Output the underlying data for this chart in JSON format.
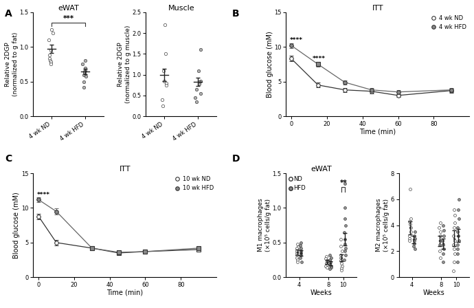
{
  "panel_A_eWAT": {
    "title": "eWAT",
    "ylabel": "Relative 2DGP\n(normalized to g fat)",
    "groups": [
      "4 wk ND",
      "4 wk HFD"
    ],
    "means": [
      0.97,
      0.65
    ],
    "sems": [
      0.06,
      0.04
    ],
    "nd_points": [
      1.25,
      1.2,
      1.1,
      0.95,
      0.88,
      0.83,
      0.8,
      0.78,
      0.75
    ],
    "hfd_points": [
      0.8,
      0.75,
      0.7,
      0.67,
      0.65,
      0.63,
      0.6,
      0.58,
      0.5,
      0.42
    ],
    "sig_text": "***",
    "ylim": [
      0,
      1.5
    ],
    "yticks": [
      0.0,
      0.5,
      1.0,
      1.5
    ]
  },
  "panel_A_Muscle": {
    "title": "Muscle",
    "ylabel": "Relative 2DGP\n(normalized to g muscle)",
    "groups": [
      "4 wk ND",
      "4 wk HFD"
    ],
    "means": [
      1.0,
      0.82
    ],
    "sems": [
      0.15,
      0.1
    ],
    "nd_points": [
      2.2,
      1.5,
      1.1,
      0.85,
      0.8,
      0.75,
      0.4,
      0.25
    ],
    "hfd_points": [
      1.6,
      1.1,
      0.85,
      0.82,
      0.78,
      0.65,
      0.55,
      0.45,
      0.35
    ],
    "ylim": [
      0,
      2.5
    ],
    "yticks": [
      0.0,
      0.5,
      1.0,
      1.5,
      2.0,
      2.5
    ]
  },
  "panel_B": {
    "title": "ITT",
    "xlabel": "Time (min)",
    "ylabel": "Blood glucose (mM)",
    "time_points": [
      0,
      15,
      30,
      45,
      60,
      90
    ],
    "nd_mean": [
      8.3,
      4.5,
      3.8,
      3.6,
      3.0,
      3.7
    ],
    "nd_sem": [
      0.4,
      0.35,
      0.3,
      0.3,
      0.2,
      0.3
    ],
    "hfd_mean": [
      10.2,
      7.5,
      4.9,
      3.8,
      3.5,
      3.8
    ],
    "hfd_sem": [
      0.35,
      0.35,
      0.3,
      0.3,
      0.3,
      0.3
    ],
    "legend": [
      "4 wk ND",
      "4 wk HFD"
    ],
    "sig_t0": true,
    "sig_t15": true,
    "ylim": [
      0,
      15
    ],
    "yticks": [
      0,
      5,
      10,
      15
    ],
    "xticks": [
      0,
      20,
      40,
      60,
      80
    ],
    "xlim": [
      -3,
      100
    ]
  },
  "panel_C": {
    "title": "ITT",
    "xlabel": "Time (min)",
    "ylabel": "Blood glucose (mM)",
    "time_points": [
      0,
      10,
      30,
      45,
      60,
      90
    ],
    "nd_mean": [
      8.8,
      5.0,
      4.2,
      3.5,
      3.7,
      4.0
    ],
    "nd_sem": [
      0.4,
      0.4,
      0.3,
      0.3,
      0.3,
      0.3
    ],
    "hfd_mean": [
      11.2,
      9.5,
      4.2,
      3.6,
      3.7,
      4.2
    ],
    "hfd_sem": [
      0.35,
      0.4,
      0.3,
      0.3,
      0.3,
      0.3
    ],
    "legend": [
      "10 wk ND",
      "10 wk HFD"
    ],
    "sig_t0": true,
    "square_from_idx": 2,
    "ylim": [
      0,
      15
    ],
    "yticks": [
      0,
      5,
      10,
      15
    ],
    "xticks": [
      0,
      20,
      40,
      60,
      80
    ],
    "xlim": [
      -3,
      100
    ]
  },
  "panel_D_M1": {
    "title": "eWAT",
    "xlabel": "Weeks",
    "ylabel": "M1 macrophages\n(×10⁵ cells/g fat)",
    "weeks": [
      4,
      8,
      10
    ],
    "nd_points_4wk": [
      0.48,
      0.44,
      0.42,
      0.38,
      0.35,
      0.32,
      0.28,
      0.25,
      0.22
    ],
    "hfd_points_4wk": [
      0.5,
      0.46,
      0.42,
      0.38,
      0.35,
      0.32,
      0.28,
      0.22
    ],
    "nd_points_8wk": [
      0.3,
      0.27,
      0.24,
      0.22,
      0.2,
      0.18,
      0.16,
      0.14
    ],
    "hfd_points_8wk": [
      0.32,
      0.28,
      0.25,
      0.22,
      0.18,
      0.16,
      0.14,
      0.12
    ],
    "nd_points_10wk": [
      0.55,
      0.45,
      0.38,
      0.32,
      0.28,
      0.24,
      0.2,
      0.16,
      0.13,
      0.1
    ],
    "hfd_points_10wk": [
      1.35,
      1.0,
      0.85,
      0.75,
      0.65,
      0.55,
      0.48,
      0.42,
      0.38,
      0.32,
      0.25
    ],
    "nd_means": [
      0.36,
      0.22,
      0.28
    ],
    "hfd_means": [
      0.35,
      0.2,
      0.55
    ],
    "nd_sems": [
      0.04,
      0.03,
      0.05
    ],
    "hfd_sems": [
      0.04,
      0.03,
      0.09
    ],
    "sig_week": 10,
    "sig_text": "**",
    "ylim": [
      0,
      1.5
    ],
    "yticks": [
      0.0,
      0.5,
      1.0,
      1.5
    ]
  },
  "panel_D_M2": {
    "title": "",
    "xlabel": "Weeks",
    "ylabel": "M2 macrophages\n(×10⁵ cells/g fat)",
    "weeks": [
      4,
      8,
      10
    ],
    "nd_points_4wk": [
      6.8,
      4.5,
      4.3,
      4.1,
      3.8,
      3.5,
      3.2,
      3.0,
      2.8
    ],
    "hfd_points_4wk": [
      3.5,
      3.2,
      3.0,
      2.8,
      2.6,
      2.4,
      2.2
    ],
    "nd_points_8wk": [
      4.2,
      3.8,
      3.5,
      3.2,
      2.8,
      2.5,
      2.0,
      1.5
    ],
    "hfd_points_8wk": [
      4.0,
      3.6,
      3.2,
      2.8,
      2.5,
      2.2,
      1.8,
      1.2
    ],
    "nd_points_10wk": [
      5.2,
      4.8,
      4.2,
      3.8,
      3.2,
      2.8,
      2.5,
      2.2,
      1.8,
      1.2,
      0.5
    ],
    "hfd_points_10wk": [
      6.0,
      5.2,
      4.5,
      3.8,
      3.5,
      3.2,
      2.8,
      2.5,
      2.2,
      1.8,
      1.2
    ],
    "nd_means": [
      3.8,
      2.8,
      3.0
    ],
    "hfd_means": [
      2.9,
      2.6,
      3.2
    ],
    "nd_sems": [
      0.5,
      0.4,
      0.6
    ],
    "hfd_sems": [
      0.3,
      0.4,
      0.5
    ],
    "ylim": [
      0,
      8
    ],
    "yticks": [
      0,
      2,
      4,
      6,
      8
    ]
  }
}
